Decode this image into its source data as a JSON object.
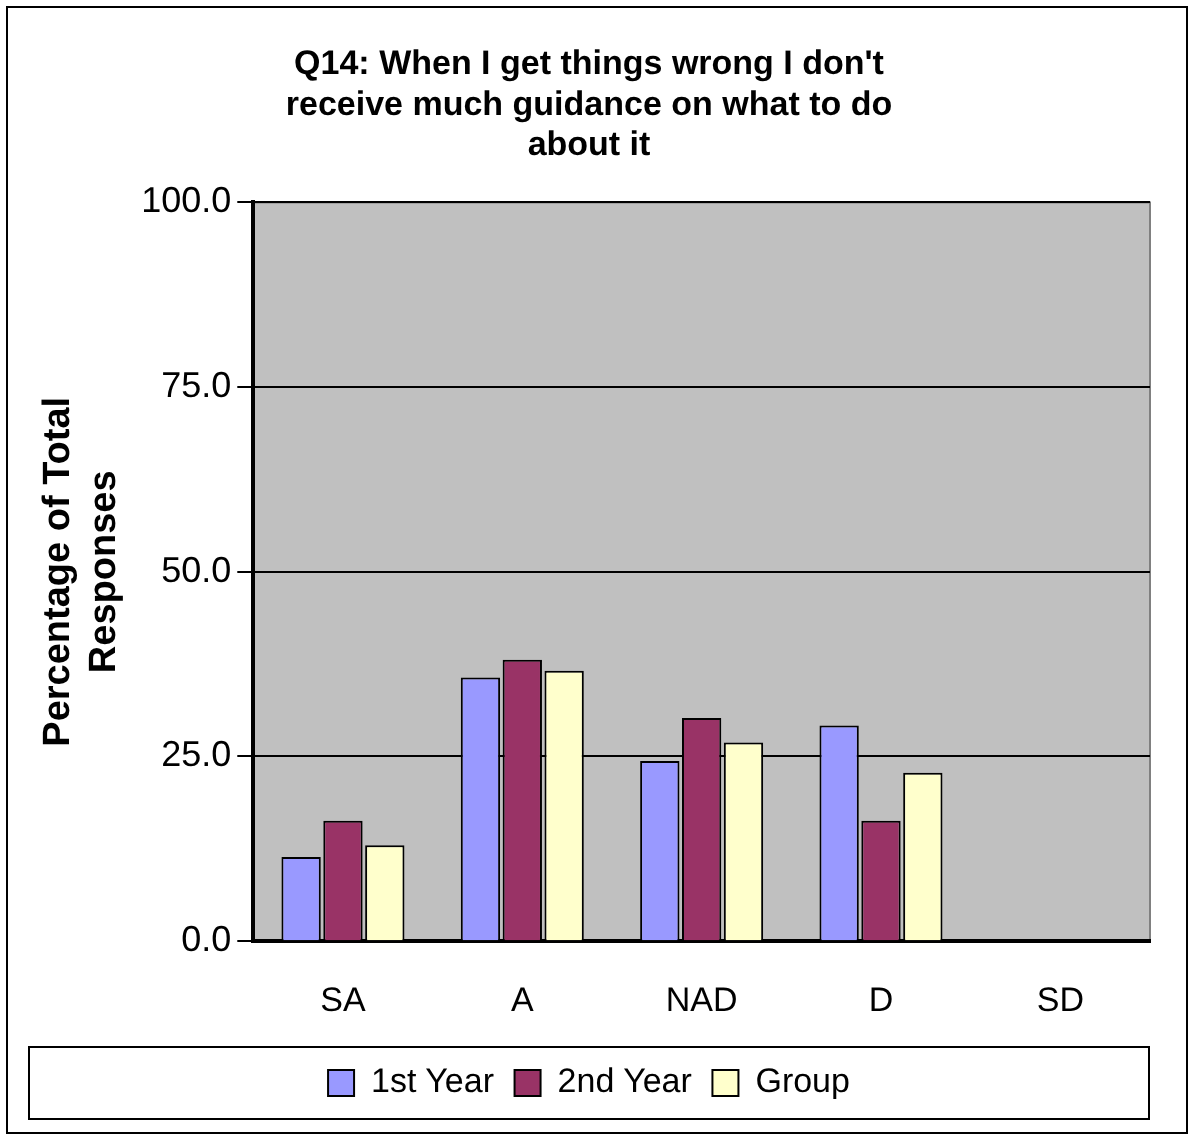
{
  "chart_data": {
    "type": "bar",
    "title": [
      "Q14: When I get things wrong I don't",
      "receive much guidance on what to do",
      "about it"
    ],
    "ylabel": [
      "Percentage of Total",
      "Responses"
    ],
    "categories": [
      "SA",
      "A",
      "NAD",
      "D",
      "SD"
    ],
    "series": [
      {
        "name": "1st Year",
        "color": "#9999ff",
        "values": [
          11.4,
          35.7,
          24.4,
          29.2,
          0
        ]
      },
      {
        "name": "2nd Year",
        "color": "#993366",
        "values": [
          16.3,
          38.1,
          30.2,
          16.3,
          0
        ]
      },
      {
        "name": "Group",
        "color": "#ffffcc",
        "values": [
          13.0,
          36.6,
          26.9,
          22.8,
          0
        ]
      }
    ],
    "ylim": [
      0,
      100
    ],
    "yticks": [
      {
        "value": 0,
        "label": "0.0"
      },
      {
        "value": 25,
        "label": "25.0"
      },
      {
        "value": 50,
        "label": "50.0"
      },
      {
        "value": 75,
        "label": "75.0"
      },
      {
        "value": 100,
        "label": "100.0"
      }
    ],
    "grid": "y",
    "legend": "bottom"
  }
}
